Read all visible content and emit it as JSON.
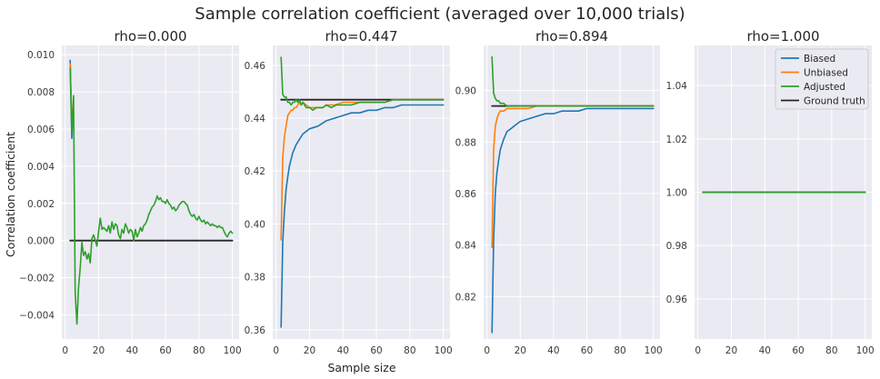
{
  "chart_data": {
    "type": "line",
    "title": "Sample correlation coefficient (averaged over 10,000 trials)",
    "xlabel": "Sample size",
    "ylabel": "Correlation coefficient",
    "grid": true,
    "legend_placement": "top-right",
    "legend": [
      "Biased",
      "Unbiased",
      "Adjusted",
      "Ground truth"
    ],
    "colors": {
      "Biased": "#1f77b4",
      "Unbiased": "#ff7f0e",
      "Adjusted": "#2ca02c",
      "Ground truth": "#262626"
    },
    "panels": [
      {
        "title": "rho=0.000",
        "xlim": [
          -2,
          104
        ],
        "ylim": [
          -0.0053,
          0.0105
        ],
        "xticks": [
          0,
          20,
          40,
          60,
          80,
          100
        ],
        "yticks": [
          -0.004,
          -0.002,
          0.0,
          0.002,
          0.004,
          0.006,
          0.008,
          0.01
        ],
        "ytick_labels": [
          "−0.004",
          "−0.002",
          "0.000",
          "0.002",
          "0.004",
          "0.006",
          "0.008",
          "0.010"
        ],
        "series": [
          {
            "name": "Biased",
            "x": [
              3,
              4,
              5
            ],
            "y": [
              0.0097,
              0.0055,
              0.0075
            ]
          },
          {
            "name": "Unbiased",
            "x": [
              3,
              4,
              5
            ],
            "y": [
              0.0095,
              0.006,
              0.0077
            ]
          },
          {
            "name": "Adjusted",
            "x": [
              3,
              4,
              5,
              6,
              7,
              8,
              9,
              10,
              11,
              12,
              13,
              14,
              15,
              16,
              17,
              18,
              19,
              20,
              21,
              22,
              23,
              24,
              25,
              26,
              27,
              28,
              29,
              30,
              31,
              32,
              33,
              34,
              35,
              36,
              37,
              38,
              39,
              40,
              41,
              42,
              43,
              44,
              45,
              46,
              47,
              48,
              49,
              50,
              51,
              52,
              53,
              54,
              55,
              56,
              57,
              58,
              59,
              60,
              61,
              62,
              63,
              64,
              65,
              66,
              67,
              68,
              69,
              70,
              71,
              72,
              73,
              74,
              75,
              76,
              77,
              78,
              79,
              80,
              81,
              82,
              83,
              84,
              85,
              86,
              87,
              88,
              89,
              90,
              91,
              92,
              93,
              94,
              95,
              96,
              97,
              98,
              99,
              100
            ],
            "y": [
              0.0093,
              0.0058,
              0.0078,
              -0.0028,
              -0.0045,
              -0.0025,
              -0.0015,
              -0.0001,
              -0.0008,
              -0.0006,
              -0.001,
              -0.0007,
              -0.0012,
              0.0001,
              0.0003,
              0.0,
              -0.0003,
              0.0005,
              0.0012,
              0.0006,
              0.0007,
              0.0006,
              0.0005,
              0.0008,
              0.0004,
              0.001,
              0.0006,
              0.0009,
              0.0008,
              0.0003,
              0.0001,
              0.0006,
              0.0004,
              0.0009,
              0.0007,
              0.0004,
              0.0006,
              0.0005,
              0.0,
              0.0006,
              0.0002,
              0.0004,
              0.0007,
              0.0005,
              0.0008,
              0.0009,
              0.0011,
              0.0014,
              0.0016,
              0.0018,
              0.0019,
              0.0021,
              0.0024,
              0.0022,
              0.0023,
              0.0021,
              0.0021,
              0.002,
              0.0022,
              0.002,
              0.0019,
              0.0017,
              0.0018,
              0.0016,
              0.0017,
              0.0019,
              0.002,
              0.0021,
              0.0021,
              0.002,
              0.0019,
              0.0016,
              0.0014,
              0.0013,
              0.0014,
              0.0012,
              0.0011,
              0.0013,
              0.0011,
              0.001,
              0.0011,
              0.0009,
              0.001,
              0.0009,
              0.0008,
              0.0009,
              0.0008,
              0.0008,
              0.0007,
              0.0008,
              0.0007,
              0.0007,
              0.0005,
              0.0003,
              0.0002,
              0.0004,
              0.0005,
              0.0004
            ]
          },
          {
            "name": "Ground truth",
            "x": [
              3,
              100
            ],
            "y": [
              0.0,
              0.0
            ]
          }
        ]
      },
      {
        "title": "rho=0.447",
        "xlim": [
          -2,
          104
        ],
        "ylim": [
          0.3565,
          0.4675
        ],
        "xticks": [
          0,
          20,
          40,
          60,
          80,
          100
        ],
        "yticks": [
          0.36,
          0.38,
          0.4,
          0.42,
          0.44,
          0.46
        ],
        "ytick_labels": [
          "0.36",
          "0.38",
          "0.40",
          "0.42",
          "0.44",
          "0.46"
        ],
        "series": [
          {
            "name": "Biased",
            "x": [
              3,
              4,
              5,
              6,
              7,
              8,
              10,
              12,
              14,
              16,
              18,
              20,
              25,
              30,
              35,
              40,
              45,
              50,
              55,
              60,
              65,
              70,
              75,
              80,
              85,
              90,
              95,
              100
            ],
            "y": [
              0.361,
              0.393,
              0.405,
              0.413,
              0.418,
              0.422,
              0.427,
              0.43,
              0.432,
              0.434,
              0.435,
              0.436,
              0.437,
              0.439,
              0.44,
              0.441,
              0.442,
              0.442,
              0.443,
              0.443,
              0.444,
              0.444,
              0.445,
              0.445,
              0.445,
              0.445,
              0.445,
              0.445
            ]
          },
          {
            "name": "Unbiased",
            "x": [
              3,
              4,
              5,
              6,
              7,
              8,
              9,
              10,
              11,
              12,
              13,
              14,
              15,
              16,
              18,
              20,
              22,
              25,
              28,
              30,
              35,
              40,
              45,
              50,
              55,
              60,
              65,
              70,
              75,
              80,
              85,
              90,
              95,
              100
            ],
            "y": [
              0.394,
              0.425,
              0.433,
              0.437,
              0.441,
              0.442,
              0.443,
              0.443,
              0.444,
              0.444,
              0.445,
              0.446,
              0.445,
              0.446,
              0.445,
              0.444,
              0.444,
              0.444,
              0.444,
              0.445,
              0.445,
              0.446,
              0.446,
              0.446,
              0.446,
              0.446,
              0.446,
              0.447,
              0.447,
              0.447,
              0.447,
              0.447,
              0.447,
              0.447
            ]
          },
          {
            "name": "Adjusted",
            "x": [
              3,
              4,
              5,
              6,
              7,
              8,
              9,
              10,
              11,
              12,
              13,
              14,
              15,
              16,
              17,
              18,
              20,
              22,
              24,
              26,
              28,
              30,
              33,
              36,
              40,
              45,
              50,
              55,
              60,
              65,
              70,
              75,
              80,
              85,
              90,
              95,
              100
            ],
            "y": [
              0.463,
              0.449,
              0.448,
              0.448,
              0.446,
              0.446,
              0.445,
              0.446,
              0.446,
              0.447,
              0.446,
              0.447,
              0.445,
              0.446,
              0.445,
              0.444,
              0.444,
              0.443,
              0.444,
              0.444,
              0.444,
              0.445,
              0.444,
              0.445,
              0.445,
              0.445,
              0.446,
              0.446,
              0.446,
              0.446,
              0.447,
              0.447,
              0.447,
              0.447,
              0.447,
              0.447,
              0.447
            ]
          },
          {
            "name": "Ground truth",
            "x": [
              3,
              100
            ],
            "y": [
              0.447,
              0.447
            ]
          }
        ]
      },
      {
        "title": "rho=0.894",
        "xlim": [
          -2,
          104
        ],
        "ylim": [
          0.8035,
          0.9175
        ],
        "xticks": [
          0,
          20,
          40,
          60,
          80,
          100
        ],
        "yticks": [
          0.82,
          0.84,
          0.86,
          0.88,
          0.9
        ],
        "ytick_labels": [
          "0.82",
          "0.84",
          "0.86",
          "0.88",
          "0.90"
        ],
        "series": [
          {
            "name": "Biased",
            "x": [
              3,
              4,
              5,
              6,
              7,
              8,
              9,
              10,
              12,
              14,
              16,
              18,
              20,
              25,
              30,
              35,
              40,
              45,
              50,
              55,
              60,
              65,
              70,
              75,
              80,
              85,
              90,
              95,
              100
            ],
            "y": [
              0.806,
              0.842,
              0.86,
              0.868,
              0.873,
              0.877,
              0.879,
              0.881,
              0.884,
              0.885,
              0.886,
              0.887,
              0.888,
              0.889,
              0.89,
              0.891,
              0.891,
              0.892,
              0.892,
              0.892,
              0.893,
              0.893,
              0.893,
              0.893,
              0.893,
              0.893,
              0.893,
              0.893,
              0.893
            ]
          },
          {
            "name": "Unbiased",
            "x": [
              3,
              4,
              5,
              6,
              7,
              8,
              9,
              10,
              12,
              14,
              16,
              18,
              20,
              25,
              30,
              35,
              40,
              50,
              60,
              70,
              80,
              90,
              100
            ],
            "y": [
              0.839,
              0.877,
              0.886,
              0.889,
              0.891,
              0.892,
              0.892,
              0.892,
              0.893,
              0.893,
              0.893,
              0.893,
              0.893,
              0.893,
              0.894,
              0.894,
              0.894,
              0.894,
              0.894,
              0.894,
              0.894,
              0.894,
              0.894
            ]
          },
          {
            "name": "Adjusted",
            "x": [
              3,
              4,
              5,
              6,
              7,
              8,
              9,
              10,
              12,
              14,
              16,
              18,
              20,
              25,
              30,
              40,
              50,
              60,
              70,
              80,
              90,
              100
            ],
            "y": [
              0.913,
              0.899,
              0.897,
              0.896,
              0.896,
              0.895,
              0.895,
              0.895,
              0.894,
              0.894,
              0.894,
              0.894,
              0.894,
              0.894,
              0.894,
              0.894,
              0.894,
              0.894,
              0.894,
              0.894,
              0.894,
              0.894
            ]
          },
          {
            "name": "Ground truth",
            "x": [
              3,
              100
            ],
            "y": [
              0.894,
              0.894
            ]
          }
        ]
      },
      {
        "title": "rho=1.000",
        "xlim": [
          -2,
          104
        ],
        "ylim": [
          0.945,
          1.055
        ],
        "xticks": [
          0,
          20,
          40,
          60,
          80,
          100
        ],
        "yticks": [
          0.96,
          0.98,
          1.0,
          1.02,
          1.04
        ],
        "ytick_labels": [
          "0.96",
          "0.98",
          "1.00",
          "1.02",
          "1.04"
        ],
        "series": [
          {
            "name": "Biased",
            "x": [
              3,
              100
            ],
            "y": [
              1.0,
              1.0
            ]
          },
          {
            "name": "Unbiased",
            "x": [
              3,
              100
            ],
            "y": [
              1.0,
              1.0
            ]
          },
          {
            "name": "Adjusted",
            "x": [
              3,
              100
            ],
            "y": [
              1.0,
              1.0
            ]
          },
          {
            "name": "Ground truth",
            "x": [
              3,
              100
            ],
            "y": [
              1.0,
              1.0
            ]
          }
        ]
      }
    ]
  }
}
